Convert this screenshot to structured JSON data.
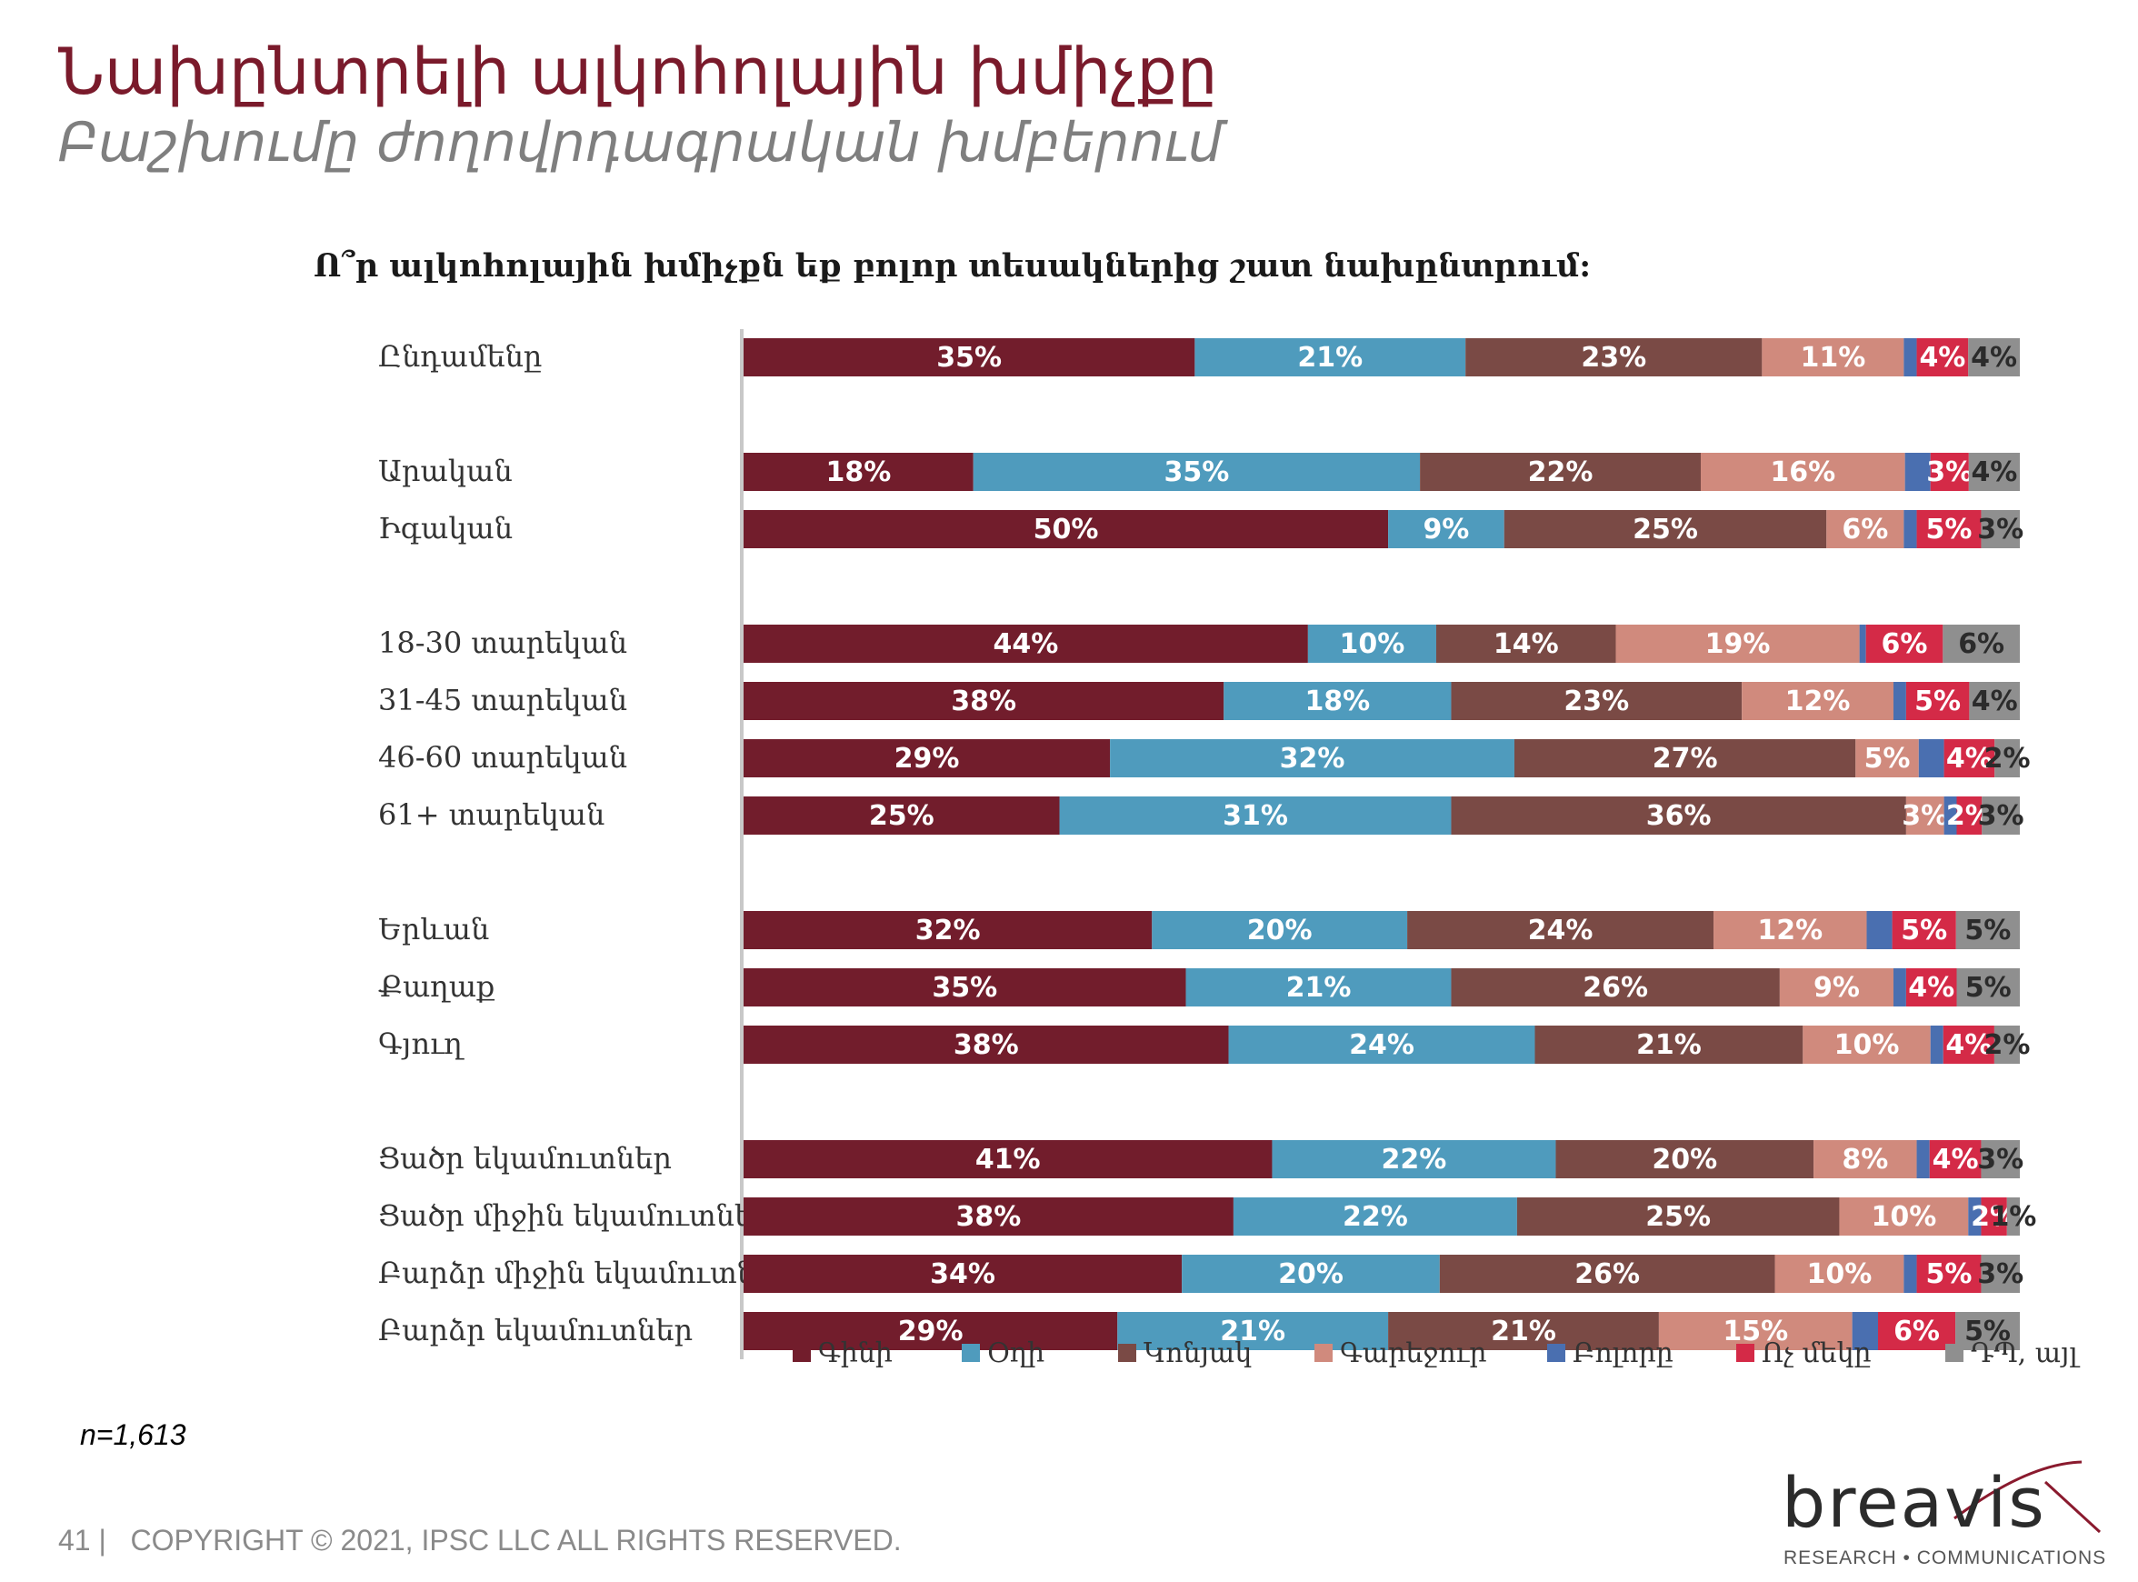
{
  "header": {
    "title": "Նախընտրելի ալկոհոլային խմիչքը",
    "subtitle": "Բաշխումը ժողովրդագրական խմբերում"
  },
  "chart_data": {
    "type": "bar",
    "orientation": "horizontal",
    "stacked": true,
    "title": "Ո՞ր ալկոհոլային խմիչքն եք բոլոր տեսակներից շատ նախընտրում:",
    "legend_position": "bottom",
    "series": [
      {
        "name": "Գինի",
        "color": "#721d2c"
      },
      {
        "name": "Օղի",
        "color": "#4f9bbd"
      },
      {
        "name": "Կոնյակ",
        "color": "#7a4a45"
      },
      {
        "name": "Գարեջուր",
        "color": "#d08a7d"
      },
      {
        "name": "Բոլորը",
        "color": "#4a6fb0"
      },
      {
        "name": "Ոչ մեկը",
        "color": "#d42a47"
      },
      {
        "name": "ԴՊ, այլ",
        "color": "#8f8f8f"
      }
    ],
    "rows": [
      {
        "label": "Ընդամենը",
        "group": 0,
        "values": [
          35,
          21,
          23,
          11,
          1,
          4,
          4
        ],
        "labels": [
          "35%",
          "21%",
          "23%",
          "11%",
          "",
          "4%",
          "4%"
        ]
      },
      {
        "label": "Արական",
        "group": 1,
        "values": [
          18,
          35,
          22,
          16,
          2,
          3,
          4
        ],
        "labels": [
          "18%",
          "35%",
          "22%",
          "16%",
          "",
          "3%",
          "4%"
        ]
      },
      {
        "label": "Իգական",
        "group": 1,
        "values": [
          50,
          9,
          25,
          6,
          1,
          5,
          3
        ],
        "labels": [
          "50%",
          "9%",
          "25%",
          "6%",
          "",
          "5%",
          "3%"
        ]
      },
      {
        "label": "18-30 տարեկան",
        "group": 2,
        "values": [
          44,
          10,
          14,
          19,
          0.5,
          6,
          6
        ],
        "labels": [
          "44%",
          "10%",
          "14%",
          "19%",
          "",
          "6%",
          "6%"
        ]
      },
      {
        "label": "31-45 տարեկան",
        "group": 2,
        "values": [
          38,
          18,
          23,
          12,
          1,
          5,
          4
        ],
        "labels": [
          "38%",
          "18%",
          "23%",
          "12%",
          "",
          "5%",
          "4%"
        ]
      },
      {
        "label": "46-60 տարեկան",
        "group": 2,
        "values": [
          29,
          32,
          27,
          5,
          2,
          4,
          2
        ],
        "labels": [
          "29%",
          "32%",
          "27%",
          "5%",
          "",
          "4%",
          "2%"
        ]
      },
      {
        "label": "61+ տարեկան",
        "group": 2,
        "values": [
          25,
          31,
          36,
          3,
          1,
          2,
          3
        ],
        "labels": [
          "25%",
          "31%",
          "36%",
          "3%",
          "",
          "2%",
          "3%"
        ]
      },
      {
        "label": "Երևան",
        "group": 3,
        "values": [
          32,
          20,
          24,
          12,
          2,
          5,
          5
        ],
        "labels": [
          "32%",
          "20%",
          "24%",
          "12%",
          "",
          "5%",
          "5%"
        ]
      },
      {
        "label": "Քաղաք",
        "group": 3,
        "values": [
          35,
          21,
          26,
          9,
          1,
          4,
          5
        ],
        "labels": [
          "35%",
          "21%",
          "26%",
          "9%",
          "",
          "4%",
          "5%"
        ]
      },
      {
        "label": "Գյուղ",
        "group": 3,
        "values": [
          38,
          24,
          21,
          10,
          1,
          4,
          2
        ],
        "labels": [
          "38%",
          "24%",
          "21%",
          "10%",
          "",
          "4%",
          "2%"
        ]
      },
      {
        "label": "Ցածր եկամուտներ",
        "group": 4,
        "values": [
          41,
          22,
          20,
          8,
          1,
          4,
          3
        ],
        "labels": [
          "41%",
          "22%",
          "20%",
          "8%",
          "",
          "4%",
          "3%"
        ]
      },
      {
        "label": "Ցածր միջին եկամուտներ",
        "group": 4,
        "values": [
          38,
          22,
          25,
          10,
          1,
          2,
          1
        ],
        "labels": [
          "38%",
          "22%",
          "25%",
          "10%",
          "",
          "2%",
          "1%"
        ]
      },
      {
        "label": "Բարձր միջին եկամուտներ",
        "group": 4,
        "values": [
          34,
          20,
          26,
          10,
          1,
          5,
          3
        ],
        "labels": [
          "34%",
          "20%",
          "26%",
          "10%",
          "",
          "5%",
          "3%"
        ]
      },
      {
        "label": "Բարձր եկամուտներ",
        "group": 4,
        "values": [
          29,
          21,
          21,
          15,
          2,
          6,
          5
        ],
        "labels": [
          "29%",
          "21%",
          "21%",
          "15%",
          "",
          "6%",
          "5%"
        ]
      }
    ]
  },
  "sample_note": "n=1,613",
  "footer": {
    "page_number": "41",
    "copyright": "COPYRIGHT © 2021, IPSC LLC ALL RIGHTS RESERVED."
  },
  "logo": {
    "wordmark": "breavis",
    "tagline": "RESEARCH • COMMUNICATIONS"
  }
}
